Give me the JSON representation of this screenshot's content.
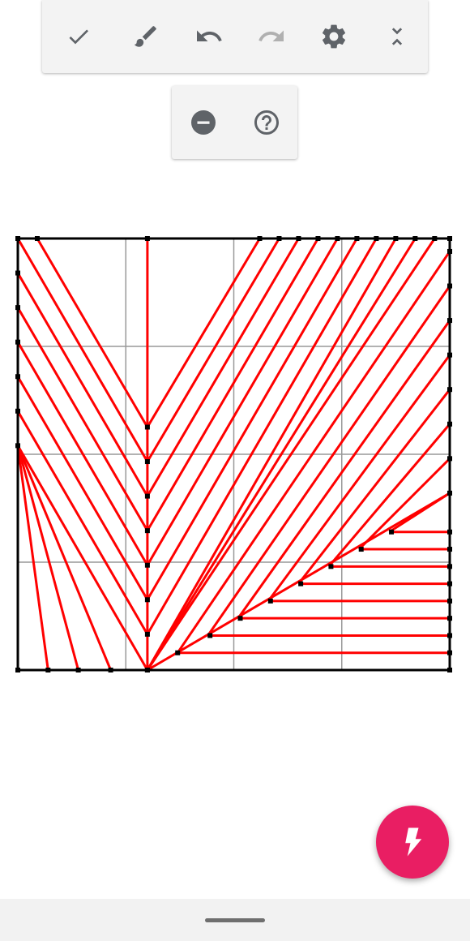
{
  "toolbar": {
    "buttons": [
      {
        "name": "confirm",
        "icon": "check-icon"
      },
      {
        "name": "brush",
        "icon": "brush-icon"
      },
      {
        "name": "undo",
        "icon": "undo-icon"
      },
      {
        "name": "redo",
        "icon": "redo-icon",
        "disabled": true
      },
      {
        "name": "settings",
        "icon": "gear-icon"
      },
      {
        "name": "collapse",
        "icon": "collapse-icon"
      }
    ],
    "icon_color": "#5f6368",
    "disabled_color": "#b0b0b0"
  },
  "subbar": {
    "buttons": [
      {
        "name": "remove",
        "icon": "minus-circle-icon"
      },
      {
        "name": "help",
        "icon": "help-circle-icon"
      }
    ]
  },
  "crease_pattern": {
    "grid_divisions": 4,
    "line_color": "#ff0000",
    "grid_color": "#999999",
    "border_color": "#000000"
  },
  "fab": {
    "icon": "lightning-icon",
    "color": "#e91e63"
  }
}
